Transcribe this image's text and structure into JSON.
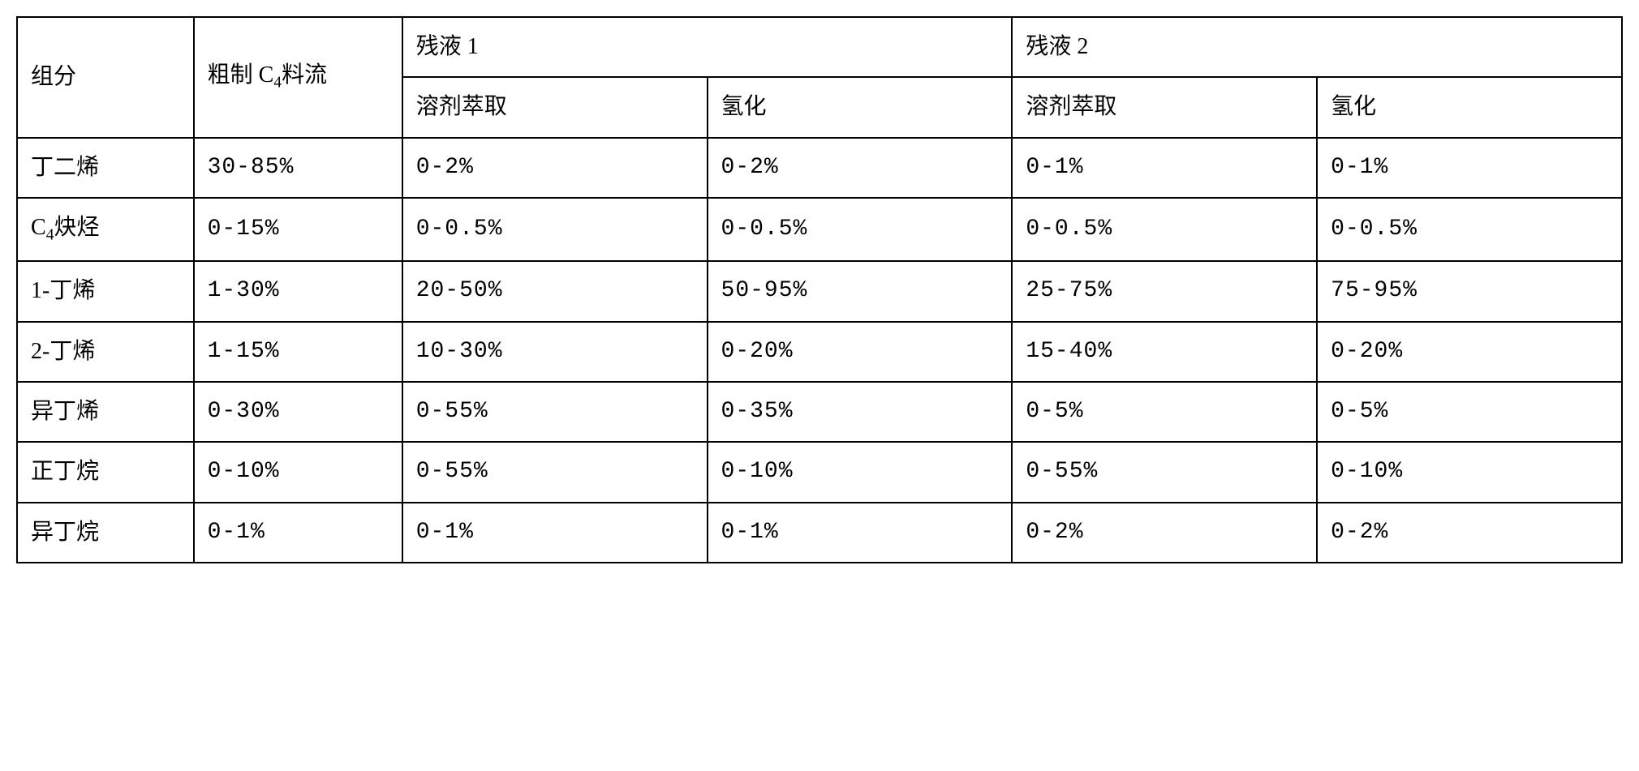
{
  "table": {
    "headers": {
      "component": "组分",
      "crude_c4": "粗制 C₄料流",
      "raffinate1": "残液 1",
      "raffinate2": "残液 2",
      "solvent_extraction": "溶剂萃取",
      "hydrogenation": "氢化"
    },
    "rows": [
      {
        "component": "丁二烯",
        "crude": "30-85%",
        "r1_se": "0-2%",
        "r1_h": "0-2%",
        "r2_se": "0-1%",
        "r2_h": "0-1%"
      },
      {
        "component": "C₄炔烃",
        "crude": "0-15%",
        "r1_se": "0-0.5%",
        "r1_h": "0-0.5%",
        "r2_se": "0-0.5%",
        "r2_h": "0-0.5%"
      },
      {
        "component": "1-丁烯",
        "crude": "1-30%",
        "r1_se": "20-50%",
        "r1_h": "50-95%",
        "r2_se": "25-75%",
        "r2_h": "75-95%"
      },
      {
        "component": "2-丁烯",
        "crude": "1-15%",
        "r1_se": "10-30%",
        "r1_h": "0-20%",
        "r2_se": "15-40%",
        "r2_h": "0-20%"
      },
      {
        "component": "异丁烯",
        "crude": "0-30%",
        "r1_se": "0-55%",
        "r1_h": "0-35%",
        "r2_se": "0-5%",
        "r2_h": "0-5%"
      },
      {
        "component": "正丁烷",
        "crude": "0-10%",
        "r1_se": "0-55%",
        "r1_h": "0-10%",
        "r2_se": "0-55%",
        "r2_h": "0-10%"
      },
      {
        "component": "异丁烷",
        "crude": "0-1%",
        "r1_se": "0-1%",
        "r1_h": "0-1%",
        "r2_se": "0-2%",
        "r2_h": "0-2%"
      }
    ],
    "styling": {
      "border_color": "#000000",
      "border_width": 2,
      "background_color": "#ffffff",
      "text_color": "#000000",
      "font_size": 28,
      "font_family_cjk": "SimSun",
      "font_family_mono": "Courier New",
      "cell_padding_v": 18,
      "cell_padding_h": 16,
      "column_widths_pct": [
        11,
        13,
        19,
        19,
        19,
        19
      ]
    }
  }
}
